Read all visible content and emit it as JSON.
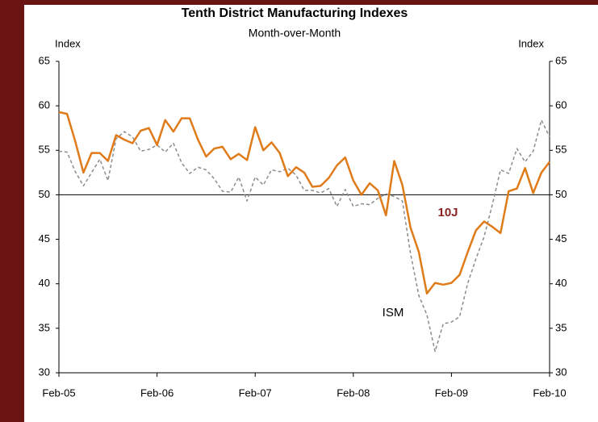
{
  "chart_data": {
    "type": "line",
    "title": "Tenth District Manufacturing Indexes",
    "subtitle": "Month-over-Month",
    "ylabel": "Index",
    "y2label": "Index",
    "categories": [
      "Feb-05",
      null,
      null,
      null,
      null,
      null,
      null,
      null,
      null,
      null,
      null,
      null,
      "Feb-06",
      null,
      null,
      null,
      null,
      null,
      null,
      null,
      null,
      null,
      null,
      null,
      "Feb-07",
      null,
      null,
      null,
      null,
      null,
      null,
      null,
      null,
      null,
      null,
      null,
      "Feb-08",
      null,
      null,
      null,
      null,
      null,
      null,
      null,
      null,
      null,
      null,
      null,
      "Feb-09",
      null,
      null,
      null,
      null,
      null,
      null,
      null,
      null,
      null,
      null,
      null,
      "Feb-10"
    ],
    "series": [
      {
        "name": "10J",
        "color": "#e07b1a",
        "label_color": "#8b2323",
        "dashed": false,
        "values": [
          59.3,
          59.1,
          56,
          52.5,
          54.7,
          54.7,
          53.8,
          56.7,
          56.2,
          55.8,
          57.2,
          57.5,
          55.6,
          58.4,
          57.1,
          58.6,
          58.6,
          56.2,
          54.3,
          55.2,
          55.4,
          54,
          54.6,
          53.9,
          57.6,
          55,
          55.9,
          54.7,
          52.1,
          53.1,
          52.5,
          50.9,
          51,
          51.9,
          53.3,
          54.2,
          51.6,
          50,
          51.3,
          50.5,
          47.7,
          53.8,
          51.1,
          46.3,
          43.6,
          38.9,
          40.1,
          39.9,
          40.1,
          41,
          43.6,
          46,
          47,
          46.4,
          45.7,
          50.4,
          50.7,
          53,
          50.2,
          52.5,
          53.7
        ]
      },
      {
        "name": "ISM",
        "color": "#8c8c8c",
        "label_color": "#000000",
        "dashed": true,
        "values": [
          54.9,
          54.8,
          52.6,
          51,
          52.5,
          54,
          51.6,
          56.3,
          57.1,
          56.5,
          54.9,
          55.1,
          55.6,
          54.8,
          55.8,
          53.6,
          52.4,
          53.1,
          52.8,
          51.8,
          50.4,
          50.3,
          52,
          49.3,
          52,
          51.1,
          52.8,
          52.6,
          53,
          52.2,
          50.5,
          50.5,
          50.2,
          50.7,
          48.7,
          50.6,
          48.7,
          49,
          48.9,
          49.6,
          50.1,
          49.8,
          49.3,
          43.4,
          38.7,
          36.5,
          32.4,
          35.5,
          35.7,
          36.3,
          40.1,
          42.8,
          45.3,
          48.9,
          52.8,
          52.4,
          55.2,
          53.7,
          54.9,
          58.4,
          56.5
        ]
      }
    ],
    "ylim": [
      30,
      65
    ],
    "yticks": [
      30,
      35,
      40,
      45,
      50,
      55,
      60,
      65
    ],
    "y2lim": [
      30,
      65
    ],
    "y2ticks": [
      30,
      35,
      40,
      45,
      50,
      55,
      60,
      65
    ],
    "reference_line": 50,
    "grid": false
  }
}
